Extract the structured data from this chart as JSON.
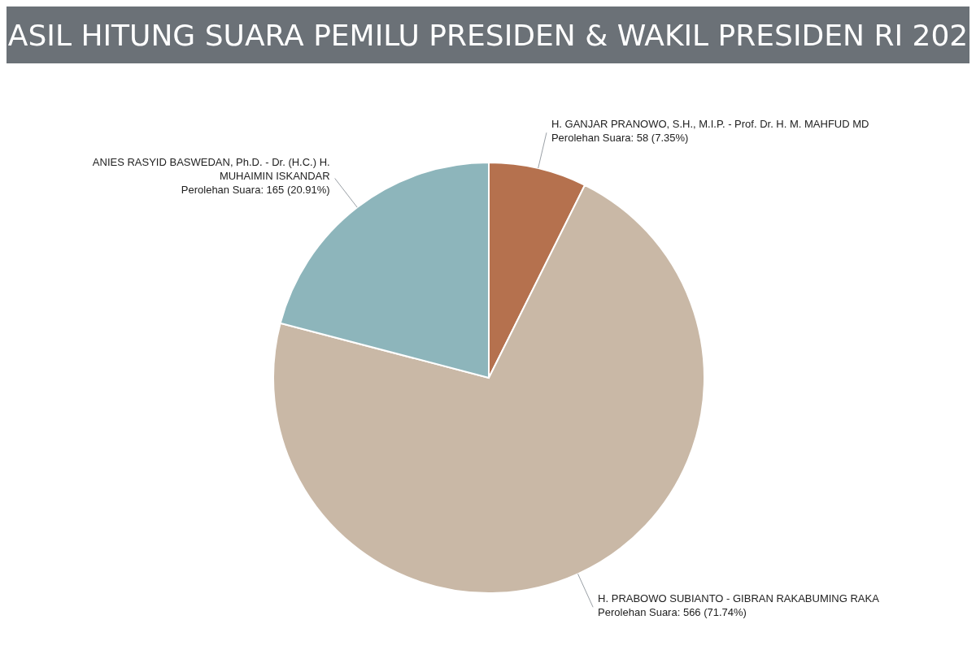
{
  "chart_data": {
    "type": "pie",
    "title": "ASIL HITUNG SUARA PEMILU PRESIDEN & WAKIL PRESIDEN RI 202",
    "categories": [
      "H. GANJAR PRANOWO, S.H., M.I.P. - Prof. Dr. H. M. MAHFUD MD",
      "H. PRABOWO SUBIANTO - GIBRAN RAKABUMING RAKA",
      "ANIES RASYID BASWEDAN, Ph.D. - Dr. (H.C.) H. MUHAIMIN ISKANDAR"
    ],
    "values": [
      58,
      566,
      165
    ],
    "value_labels": [
      "Perolehan Suara: 58 (7.35%)",
      "Perolehan Suara: 566 (71.74%)",
      "Perolehan Suara: 165 (20.91%)"
    ],
    "colors": [
      "#b5714e",
      "#c9b8a6",
      "#8db5bb"
    ],
    "legend": false
  }
}
